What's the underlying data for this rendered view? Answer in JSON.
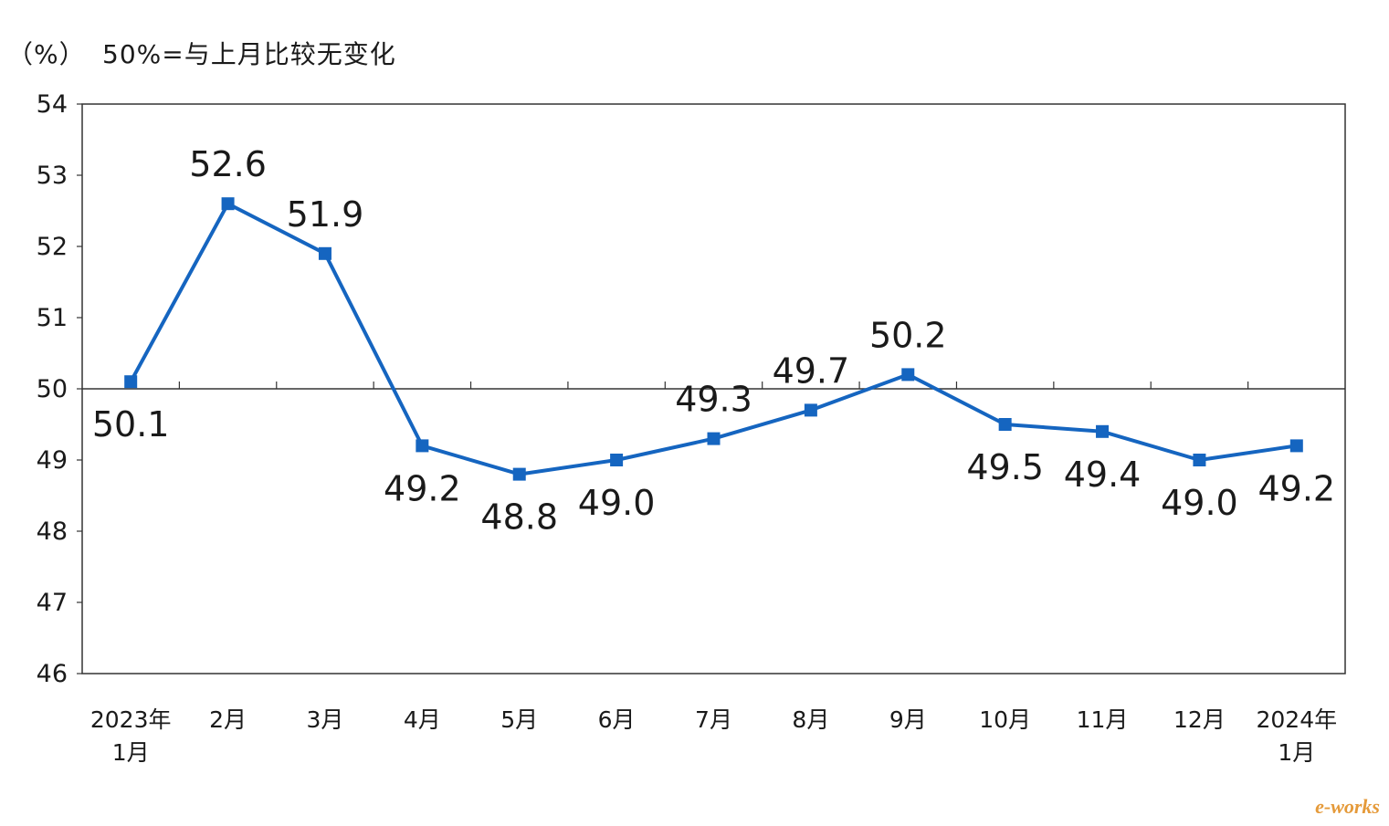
{
  "header": {
    "unit": "（%）",
    "note": "50%=与上月比较无变化"
  },
  "watermark": "e-works",
  "chart_data": {
    "type": "line",
    "categories": [
      [
        "2023年",
        "1月"
      ],
      [
        "2月"
      ],
      [
        "3月"
      ],
      [
        "4月"
      ],
      [
        "5月"
      ],
      [
        "6月"
      ],
      [
        "7月"
      ],
      [
        "8月"
      ],
      [
        "9月"
      ],
      [
        "10月"
      ],
      [
        "11月"
      ],
      [
        "12月"
      ],
      [
        "2024年",
        "1月"
      ]
    ],
    "series": [
      {
        "values": [
          50.1,
          52.6,
          51.9,
          49.2,
          48.8,
          49.0,
          49.3,
          49.7,
          50.2,
          49.5,
          49.4,
          49.0,
          49.2
        ]
      }
    ],
    "value_labels": [
      "50.1",
      "52.6",
      "51.9",
      "49.2",
      "48.8",
      "49.0",
      "49.3",
      "49.7",
      "50.2",
      "49.5",
      "49.4",
      "49.0",
      "49.2"
    ],
    "label_position": [
      "below",
      "above",
      "above",
      "below",
      "below",
      "below",
      "above",
      "above",
      "above",
      "below",
      "below",
      "below",
      "below"
    ],
    "ylim": [
      46,
      54
    ],
    "yticks": [
      46,
      47,
      48,
      49,
      50,
      51,
      52,
      53,
      54
    ],
    "reference_line": 50,
    "xlabel": "",
    "ylabel": "",
    "grid": false,
    "line_color": "#1565c0",
    "marker": "square"
  }
}
